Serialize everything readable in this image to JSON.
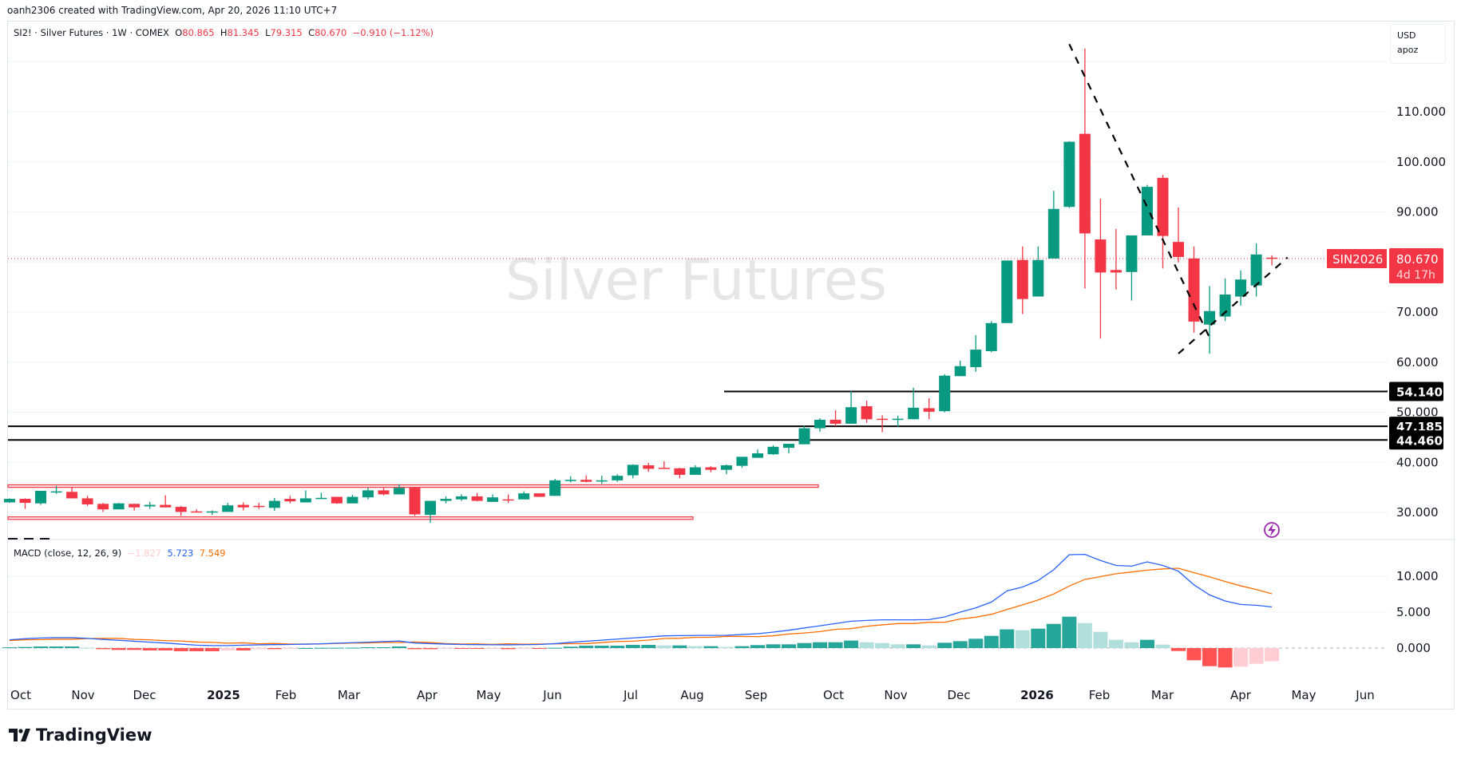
{
  "credit": "oanh2306 created with TradingView.com, Apr 20, 2026 11:10 UTC+7",
  "legend": {
    "symbol": "SI2! · Silver Futures · 1W · COMEX",
    "open_label": "O",
    "open": "80.865",
    "high_label": "H",
    "high": "81.345",
    "low_label": "L",
    "low": "79.315",
    "close_label": "C",
    "close": "80.670",
    "change": "−0.910 (−1.12%)"
  },
  "units": {
    "currency": "USD",
    "account": "apoz"
  },
  "watermark": "Silver Futures",
  "price_tag": {
    "symbol": "SIN2026",
    "price": "80.670",
    "countdown": "4d 17h",
    "color": "#f23645"
  },
  "level_labels": [
    "54.140",
    "47.185",
    "44.460"
  ],
  "macd_legend": {
    "title": "MACD (close, 12, 26, 9)",
    "histogram": "−1.827",
    "macd": "5.723",
    "signal": "7.549"
  },
  "brand": "TradingView",
  "colors": {
    "up": "#089981",
    "down": "#f23645",
    "macd": "#2962ff",
    "signal": "#ff6d00",
    "hist_up_strong": "#26a69a",
    "hist_up_weak": "#b2dfdb",
    "hist_down_strong": "#ff5252",
    "hist_down_weak": "#ffcdd2",
    "zone": "#f23645",
    "level": "#000000",
    "icon": "#9c27b0"
  },
  "chart_data": [
    {
      "type": "candlestick",
      "timeframe": "1W",
      "ylim": [
        26,
        125
      ],
      "y_ticks": [
        "110.000",
        "100.000",
        "90.000",
        "70.000",
        "60.000",
        "50.000",
        "40.000",
        "30.000"
      ],
      "grid": true,
      "x_tick_labels": [
        "Oct",
        "Nov",
        "Dec",
        "2025",
        "Feb",
        "Mar",
        "Apr",
        "May",
        "Jun",
        "Jul",
        "Aug",
        "Sep",
        "Oct",
        "Nov",
        "Dec",
        "2026",
        "Feb",
        "Mar",
        "Apr",
        "May",
        "Jun"
      ],
      "candles_columns": [
        "date",
        "open",
        "high",
        "low",
        "close"
      ],
      "candles": [
        [
          "2024-09-30",
          32.0,
          32.8,
          31.9,
          32.7
        ],
        [
          "2024-10-07",
          32.7,
          32.8,
          30.7,
          31.9
        ],
        [
          "2024-10-14",
          31.8,
          34.3,
          31.5,
          34.3
        ],
        [
          "2024-10-21",
          34.0,
          35.3,
          33.7,
          34.2
        ],
        [
          "2024-10-28",
          34.1,
          35.0,
          32.8,
          32.8
        ],
        [
          "2024-11-04",
          32.8,
          33.3,
          31.3,
          31.6
        ],
        [
          "2024-11-11",
          31.7,
          31.9,
          30.1,
          30.6
        ],
        [
          "2024-11-18",
          30.6,
          31.9,
          30.6,
          31.8
        ],
        [
          "2024-11-25",
          31.7,
          31.7,
          30.4,
          31.0
        ],
        [
          "2024-12-02",
          31.2,
          32.1,
          30.7,
          31.5
        ],
        [
          "2024-12-09",
          31.5,
          33.4,
          31.0,
          31.0
        ],
        [
          "2024-12-16",
          31.1,
          31.3,
          29.3,
          30.1
        ],
        [
          "2024-12-23",
          30.2,
          30.6,
          30.1,
          30.1
        ],
        [
          "2024-12-30",
          30.1,
          30.4,
          29.5,
          30.2
        ],
        [
          "2025-01-06",
          30.1,
          31.9,
          30.1,
          31.4
        ],
        [
          "2025-01-13",
          31.5,
          32.0,
          30.4,
          31.0
        ],
        [
          "2025-01-20",
          31.3,
          31.9,
          30.7,
          31.2
        ],
        [
          "2025-01-27",
          30.9,
          32.9,
          30.3,
          32.3
        ],
        [
          "2025-02-03",
          32.7,
          33.3,
          31.8,
          32.2
        ],
        [
          "2025-02-10",
          32.0,
          34.4,
          32.0,
          32.8
        ],
        [
          "2025-02-17",
          32.7,
          33.9,
          32.7,
          32.9
        ],
        [
          "2025-02-24",
          33.1,
          33.1,
          31.7,
          31.8
        ],
        [
          "2025-03-03",
          31.8,
          33.5,
          31.8,
          33.1
        ],
        [
          "2025-03-10",
          33.0,
          34.9,
          32.6,
          34.4
        ],
        [
          "2025-03-17",
          34.4,
          34.9,
          33.4,
          33.6
        ],
        [
          "2025-03-24",
          33.6,
          35.6,
          33.6,
          34.9
        ],
        [
          "2025-03-31",
          34.9,
          35.1,
          29.3,
          29.6
        ],
        [
          "2025-04-07",
          29.5,
          32.3,
          27.9,
          32.3
        ],
        [
          "2025-04-14",
          32.3,
          33.2,
          31.8,
          32.7
        ],
        [
          "2025-04-21",
          32.6,
          33.6,
          32.3,
          33.2
        ],
        [
          "2025-04-28",
          33.2,
          33.9,
          32.2,
          32.3
        ],
        [
          "2025-05-05",
          32.1,
          33.6,
          32.1,
          33.0
        ],
        [
          "2025-05-12",
          32.6,
          33.6,
          31.9,
          32.4
        ],
        [
          "2025-05-19",
          32.6,
          34.2,
          32.6,
          33.8
        ],
        [
          "2025-05-26",
          33.8,
          33.8,
          33.1,
          33.1
        ],
        [
          "2025-06-02",
          33.3,
          36.7,
          33.3,
          36.4
        ],
        [
          "2025-06-09",
          36.4,
          37.2,
          36.0,
          36.5
        ],
        [
          "2025-06-16",
          36.5,
          37.4,
          36.0,
          36.1
        ],
        [
          "2025-06-23",
          36.2,
          37.3,
          35.7,
          36.4
        ],
        [
          "2025-06-30",
          36.4,
          37.6,
          36.1,
          37.3
        ],
        [
          "2025-07-07",
          37.4,
          39.6,
          36.8,
          39.5
        ],
        [
          "2025-07-14",
          39.4,
          39.9,
          38.1,
          38.7
        ],
        [
          "2025-07-21",
          38.9,
          40.2,
          38.7,
          38.7
        ],
        [
          "2025-07-28",
          38.8,
          38.9,
          36.8,
          37.5
        ],
        [
          "2025-08-04",
          37.5,
          39.4,
          37.5,
          39.0
        ],
        [
          "2025-08-11",
          39.0,
          39.2,
          38.0,
          38.5
        ],
        [
          "2025-08-18",
          38.5,
          39.6,
          37.6,
          39.4
        ],
        [
          "2025-08-25",
          39.3,
          41.1,
          38.9,
          41.1
        ],
        [
          "2025-09-01",
          40.9,
          42.6,
          40.9,
          41.8
        ],
        [
          "2025-09-08",
          41.6,
          43.4,
          41.5,
          43.1
        ],
        [
          "2025-09-15",
          42.9,
          43.7,
          41.8,
          43.7
        ],
        [
          "2025-09-22",
          43.6,
          47.3,
          43.6,
          46.8
        ],
        [
          "2025-09-29",
          46.8,
          48.8,
          46.1,
          48.5
        ],
        [
          "2025-10-06",
          48.5,
          50.4,
          47.2,
          47.7
        ],
        [
          "2025-10-13",
          47.7,
          54.2,
          47.7,
          51.0
        ],
        [
          "2025-10-20",
          51.2,
          52.3,
          47.9,
          48.6
        ],
        [
          "2025-10-27",
          48.7,
          49.4,
          46.0,
          48.6
        ],
        [
          "2025-11-03",
          48.6,
          49.3,
          47.1,
          48.7
        ],
        [
          "2025-11-10",
          48.6,
          54.9,
          48.6,
          50.9
        ],
        [
          "2025-11-17",
          50.8,
          52.8,
          48.6,
          50.1
        ],
        [
          "2025-11-24",
          50.2,
          57.6,
          50.0,
          57.3
        ],
        [
          "2025-12-01",
          57.2,
          60.3,
          57.2,
          59.2
        ],
        [
          "2025-12-08",
          59.0,
          65.4,
          58.1,
          62.5
        ],
        [
          "2025-12-15",
          62.2,
          68.2,
          62.0,
          67.8
        ],
        [
          "2025-12-22",
          67.8,
          80.3,
          67.8,
          80.3
        ],
        [
          "2025-12-29",
          80.4,
          83.1,
          69.6,
          72.6
        ],
        [
          "2026-01-05",
          73.1,
          83.1,
          73.1,
          80.4
        ],
        [
          "2026-01-12",
          80.7,
          94.2,
          80.7,
          90.6
        ],
        [
          "2026-01-19",
          91.0,
          104.1,
          90.8,
          104.0
        ],
        [
          "2026-01-26",
          105.6,
          122.6,
          74.7,
          85.7
        ],
        [
          "2026-02-02",
          84.5,
          92.6,
          64.7,
          77.9
        ],
        [
          "2026-02-09",
          78.4,
          86.6,
          74.5,
          77.9
        ],
        [
          "2026-02-16",
          78.0,
          85.3,
          72.3,
          85.3
        ],
        [
          "2026-02-23",
          85.3,
          95.4,
          85.3,
          95.0
        ],
        [
          "2026-03-02",
          96.8,
          97.4,
          78.7,
          85.2
        ],
        [
          "2026-03-09",
          84.0,
          90.9,
          79.9,
          81.0
        ],
        [
          "2026-03-16",
          80.7,
          83.1,
          65.9,
          68.1
        ],
        [
          "2026-03-23",
          67.5,
          75.2,
          61.7,
          70.2
        ],
        [
          "2026-03-30",
          69.1,
          76.7,
          68.2,
          73.5
        ],
        [
          "2026-04-06",
          73.1,
          78.3,
          71.3,
          76.5
        ],
        [
          "2026-04-13",
          75.3,
          83.7,
          73.1,
          81.5
        ],
        [
          "2026-04-20",
          80.865,
          81.345,
          79.315,
          80.67
        ]
      ],
      "horizontal_levels": [
        54.14,
        47.185,
        44.46
      ],
      "zones": [
        {
          "from": 35.0,
          "to": 35.5
        },
        {
          "from": 28.6,
          "to": 29.1
        }
      ],
      "trendlines": [
        {
          "from": [
            "2026-01-19",
            123.5
          ],
          "to": [
            "2026-03-23",
            64.9
          ],
          "style": "dashed"
        },
        {
          "from": [
            "2026-03-09",
            61.7
          ],
          "to": [
            "2026-04-27",
            80.9
          ],
          "style": "dashed"
        }
      ],
      "last_price": 80.67
    },
    {
      "type": "macd",
      "params": [
        12,
        26,
        9
      ],
      "ylim": [
        -3.5,
        14.5
      ],
      "y_ticks": [
        "10.000",
        "5.000",
        "0.000"
      ],
      "macd": [
        1.15,
        1.3,
        1.4,
        1.45,
        1.45,
        1.35,
        1.2,
        1.08,
        0.95,
        0.82,
        0.7,
        0.55,
        0.4,
        0.35,
        0.35,
        0.4,
        0.45,
        0.48,
        0.5,
        0.55,
        0.6,
        0.68,
        0.75,
        0.82,
        0.9,
        0.98,
        0.7,
        0.62,
        0.55,
        0.5,
        0.48,
        0.46,
        0.45,
        0.47,
        0.5,
        0.62,
        0.8,
        0.95,
        1.1,
        1.25,
        1.4,
        1.55,
        1.7,
        1.74,
        1.75,
        1.76,
        1.78,
        1.88,
        2.0,
        2.22,
        2.48,
        2.8,
        3.1,
        3.42,
        3.74,
        3.85,
        3.93,
        3.93,
        3.93,
        3.96,
        4.33,
        5.0,
        5.6,
        6.4,
        7.96,
        8.5,
        9.4,
        10.9,
        13.0,
        13.04,
        12.2,
        11.5,
        11.4,
        12.0,
        11.5,
        10.7,
        8.8,
        7.4,
        6.56,
        6.07,
        5.96,
        5.723
      ],
      "histogram": [
        0.1,
        0.15,
        0.22,
        0.22,
        0.22,
        0.03,
        -0.15,
        -0.26,
        -0.26,
        -0.33,
        -0.33,
        -0.44,
        -0.44,
        -0.44,
        -0.33,
        -0.33,
        -0.15,
        -0.15,
        -0.07,
        0.0,
        0.03,
        0.04,
        0.05,
        0.11,
        0.11,
        0.22,
        -0.15,
        -0.15,
        -0.07,
        -0.07,
        -0.1,
        -0.05,
        -0.15,
        -0.07,
        -0.07,
        0.04,
        0.19,
        0.33,
        0.33,
        0.33,
        0.44,
        0.44,
        0.37,
        0.37,
        0.26,
        0.26,
        0.15,
        0.26,
        0.41,
        0.52,
        0.52,
        0.7,
        0.81,
        0.81,
        1.04,
        0.81,
        0.7,
        0.52,
        0.52,
        0.37,
        0.74,
        0.96,
        1.3,
        1.7,
        2.6,
        2.48,
        2.7,
        3.37,
        4.37,
        3.48,
        2.26,
        1.15,
        0.81,
        1.15,
        0.48,
        -0.41,
        -1.7,
        -2.52,
        -2.7,
        -2.59,
        -2.19,
        -1.827
      ]
    }
  ]
}
